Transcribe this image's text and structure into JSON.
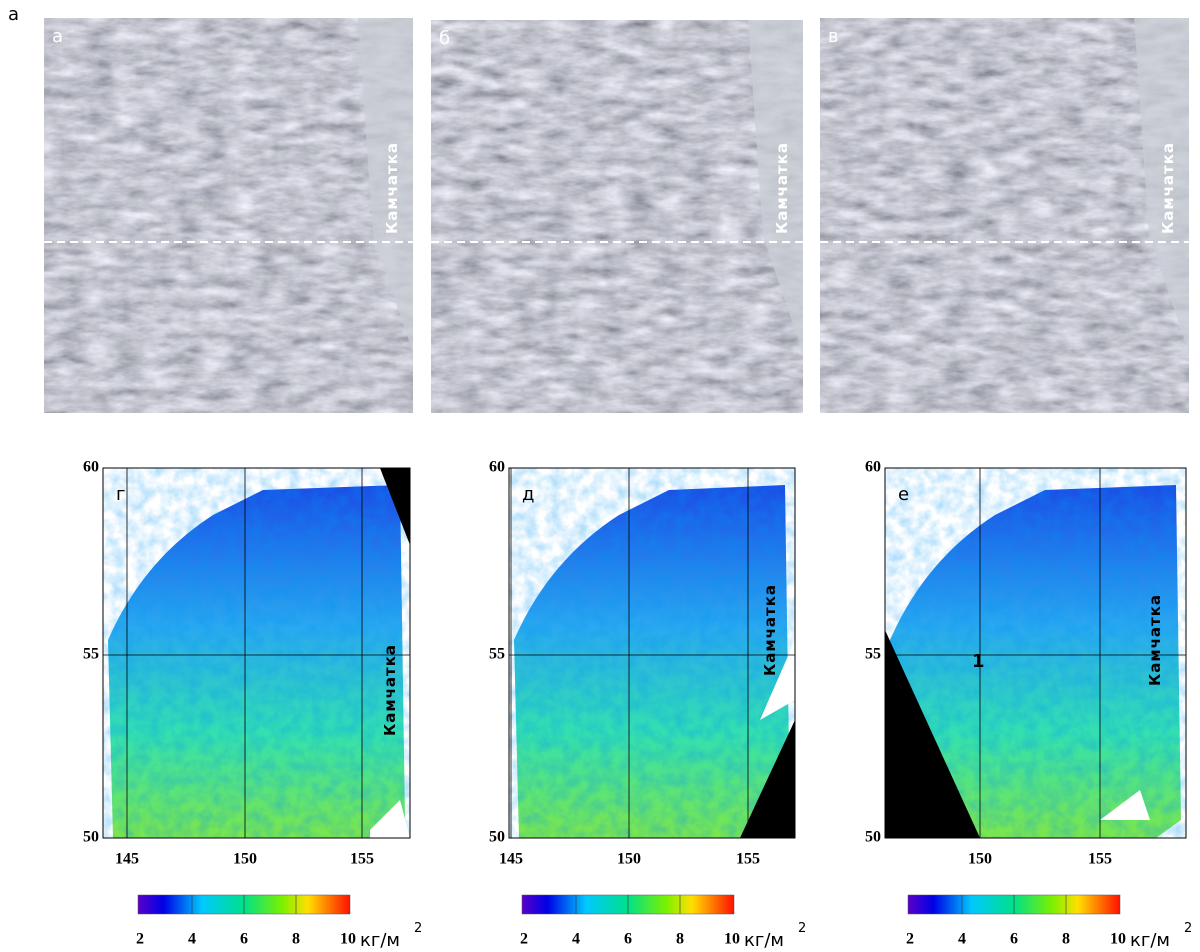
{
  "figure_label": "а",
  "top_panels": [
    {
      "label": "а",
      "region": "Камчатка"
    },
    {
      "label": "б",
      "region": "Камчатка"
    },
    {
      "label": "в",
      "region": "Камчатка"
    }
  ],
  "bottom_panels": [
    {
      "label": "г",
      "region": "Камчатка",
      "yticks": [
        60,
        55,
        50
      ],
      "xticks": [
        145,
        150,
        155
      ],
      "colorbar_ticks": [
        2,
        4,
        6,
        8,
        10
      ],
      "unit": "кг/м",
      "unit_exponent": "2"
    },
    {
      "label": "д",
      "region": "Камчатка",
      "yticks": [
        60,
        55,
        50
      ],
      "xticks": [
        145,
        150,
        155
      ],
      "colorbar_ticks": [
        2,
        4,
        6,
        8,
        10
      ],
      "unit": "кг/м",
      "unit_exponent": "2"
    },
    {
      "label": "е",
      "region": "Камчатка",
      "marker": "1",
      "yticks": [
        60,
        55,
        50
      ],
      "xticks": [
        150,
        155
      ],
      "colorbar_ticks": [
        2,
        4,
        6,
        8,
        10
      ],
      "unit": "кг/м",
      "unit_exponent": "2"
    }
  ]
}
